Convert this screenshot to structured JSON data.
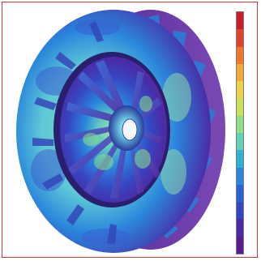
{
  "visualization": {
    "subject": "centrifugal-fan-impeller",
    "colormap": [
      "#5a1c8c",
      "#4a2ba6",
      "#3646c2",
      "#2a62d6",
      "#2a86dc",
      "#2fb2d6",
      "#5fd2b8",
      "#8fe08a",
      "#c8e05a",
      "#f0d048",
      "#f0a838",
      "#ec7830",
      "#e2442a",
      "#c81e2a"
    ],
    "colors": {
      "frame_border": "#d23a3a",
      "hub_dark": "#2a1e6e",
      "background": "#ffffff"
    },
    "legend_ticks": []
  }
}
